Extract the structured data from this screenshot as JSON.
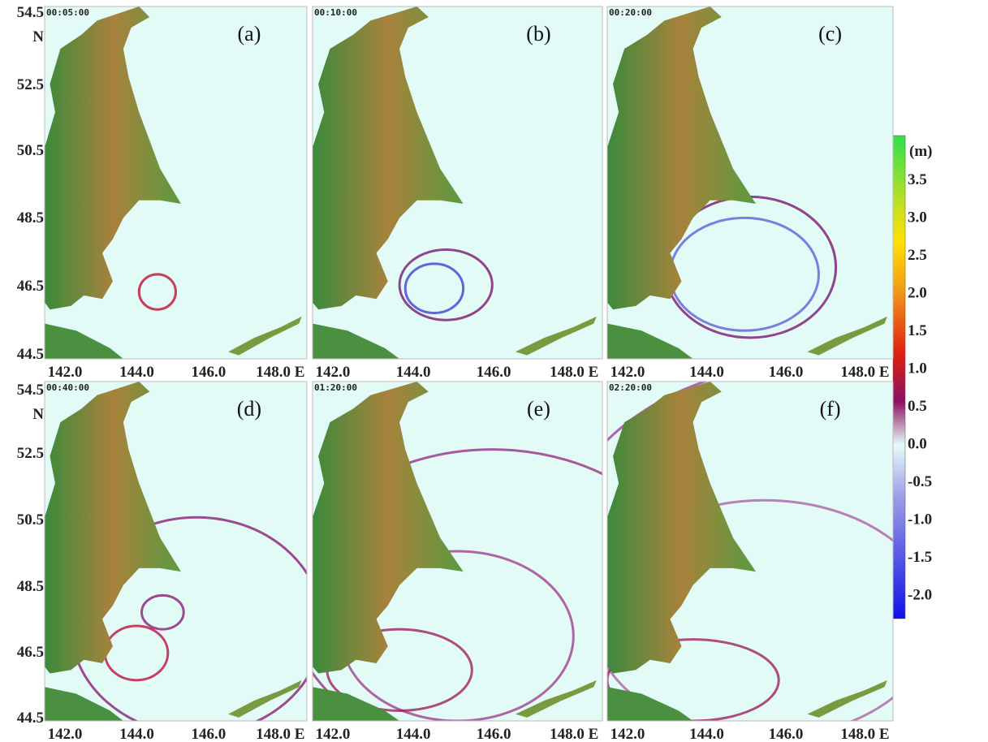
{
  "panels": [
    {
      "time": "00:05:00",
      "label": "(a)"
    },
    {
      "time": "00:10:00",
      "label": "(b)"
    },
    {
      "time": "00:20:00",
      "label": "(c)"
    },
    {
      "time": "00:40:00",
      "label": "(d)"
    },
    {
      "time": "01:20:00",
      "label": "(e)"
    },
    {
      "time": "02:20:00",
      "label": "(f)"
    }
  ],
  "y_axis_labels": [
    "54.5",
    "N",
    "52.5",
    "50.5",
    "48.5",
    "46.5",
    "44.5"
  ],
  "x_axis_labels": [
    "142.0",
    "144.0",
    "146.0",
    "148.0 E"
  ],
  "colorbar": {
    "unit": "(m)",
    "labels": [
      "3.5",
      "3.0",
      "2.5",
      "2.0",
      "1.5",
      "1.0",
      "0.5",
      "0.0",
      "-0.5",
      "-1.0",
      "-1.5",
      "-2.0"
    ]
  }
}
